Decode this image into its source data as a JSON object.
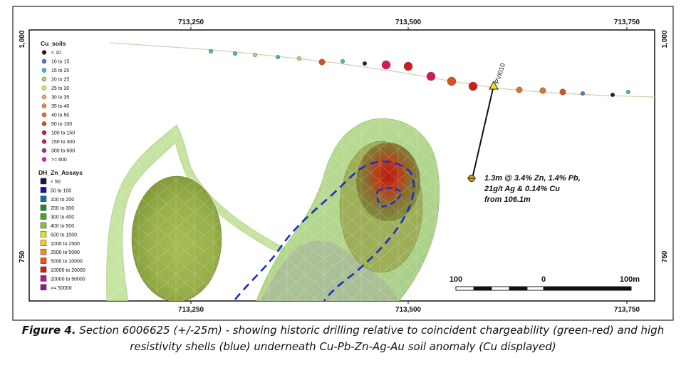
{
  "axes": {
    "x_top_ticks": [
      "713,250",
      "713,500",
      "713,750"
    ],
    "x_bottom_ticks": [
      "713,250",
      "713,500",
      "713,750"
    ],
    "y_left_ticks": [
      "1,000",
      "750"
    ],
    "y_right_ticks": [
      "1,000",
      "750"
    ]
  },
  "legend_cu": {
    "title": "Cu_soils",
    "items": [
      {
        "label": "< 10",
        "color": "#3a1030"
      },
      {
        "label": "10 to 15",
        "color": "#4f7bd6"
      },
      {
        "label": "15 to 20",
        "color": "#3fc0b5"
      },
      {
        "label": "20 to 25",
        "color": "#9fe07a"
      },
      {
        "label": "25 to 30",
        "color": "#e6e65a"
      },
      {
        "label": "30 to 35",
        "color": "#f2b35a"
      },
      {
        "label": "35 to 40",
        "color": "#ee8a3c"
      },
      {
        "label": "40 to 50",
        "color": "#e8702e"
      },
      {
        "label": "50 to 100",
        "color": "#d2541c"
      },
      {
        "label": "100 to 150",
        "color": "#d21c1c"
      },
      {
        "label": "150 to 300",
        "color": "#d61a52"
      },
      {
        "label": "300 to 600",
        "color": "#cf1a7a"
      },
      {
        "label": ">= 600",
        "color": "#e020c8"
      }
    ]
  },
  "legend_zn": {
    "title": "DH_Zn_Assays",
    "items": [
      {
        "label": "< 50",
        "color": "#16163e"
      },
      {
        "label": "50 to 100",
        "color": "#1414b4"
      },
      {
        "label": "100 to 200",
        "color": "#1c6ea0"
      },
      {
        "label": "200 to 300",
        "color": "#1e8a2c"
      },
      {
        "label": "300 to 400",
        "color": "#4aa42a"
      },
      {
        "label": "400 to 500",
        "color": "#8cc42e"
      },
      {
        "label": "500 to 1000",
        "color": "#dede2a"
      },
      {
        "label": "1000 to 2500",
        "color": "#f6c81e"
      },
      {
        "label": "2500 to 5000",
        "color": "#f08c28"
      },
      {
        "label": "5000 to 10000",
        "color": "#e85414"
      },
      {
        "label": "10000 to 20000",
        "color": "#d81a1a"
      },
      {
        "label": "20000 to 50000",
        "color": "#b41a8a"
      },
      {
        "label": ">= 50000",
        "color": "#8a1a9a"
      }
    ]
  },
  "soil_samples": [
    {
      "color": "#3fc0b5",
      "size": "small"
    },
    {
      "color": "#3fc0b5",
      "size": "small"
    },
    {
      "color": "#9fe07a",
      "size": "small"
    },
    {
      "color": "#3fc0b5",
      "size": "small"
    },
    {
      "color": "#9fe07a",
      "size": "small"
    },
    {
      "color": "#d2541c",
      "size": "medium"
    },
    {
      "color": "#3fc0b5",
      "size": "small"
    },
    {
      "color": "#3a1030",
      "size": "small"
    },
    {
      "color": "#d61a52",
      "size": "large"
    },
    {
      "color": "#d21c1c",
      "size": "large"
    },
    {
      "color": "#d61a52",
      "size": "large"
    },
    {
      "color": "#d2541c",
      "size": "large"
    },
    {
      "color": "#d21c1c",
      "size": "large"
    },
    {
      "color": "#e8702e",
      "size": "medium"
    },
    {
      "color": "#e8702e",
      "size": "medium"
    },
    {
      "color": "#d2541c",
      "size": "medium"
    },
    {
      "color": "#4f7bd6",
      "size": "small"
    },
    {
      "color": "#3a1030",
      "size": "small"
    },
    {
      "color": "#3fc0b5",
      "size": "small"
    }
  ],
  "drillhole": {
    "name": "PVI010",
    "annotation": [
      "1.3m @ 3.4% Zn, 1.4% Pb,",
      "21g/t Ag & 0.14% Cu",
      "from 106.1m"
    ]
  },
  "scale_bar": {
    "labels": [
      "100",
      "0",
      "100m"
    ]
  },
  "caption": {
    "label": "Figure 4.",
    "text": " Section 6006625 (+/-25m) - showing historic drilling relative to coincident chargeability (green-red) and high resistivity shells (blue) underneath Cu-Pb-Zn-Ag-Au soil anomaly (Cu displayed)"
  },
  "colors": {
    "frame": "#111111",
    "surface_line": "#d8ccb4",
    "chargeability_low": "#a8c868",
    "chargeability_high": "#c01a10",
    "resistivity": "#1a2ec8",
    "drill_collar": "#f0e020",
    "intercept": "#e0a000"
  }
}
